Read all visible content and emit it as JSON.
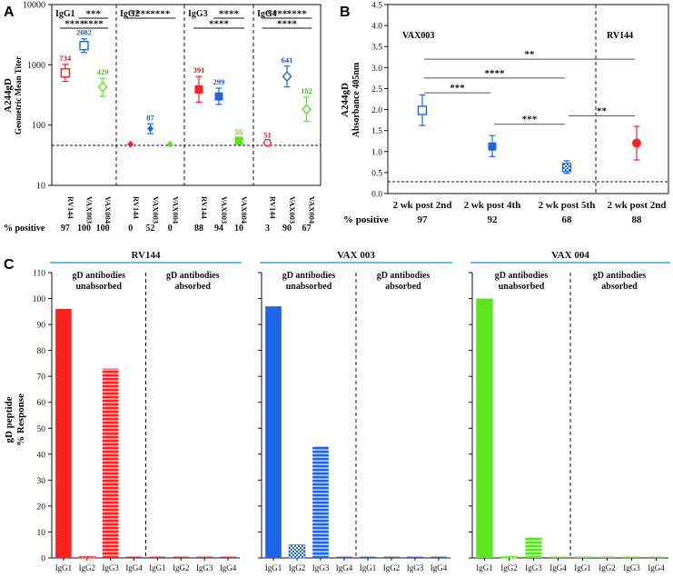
{
  "panel_letters": [
    "A",
    "B",
    "C"
  ],
  "colors": {
    "rv144": "#ff2020",
    "vax003": "#1f66e6",
    "vax004": "#5ae61f",
    "rv144_label": "#e01a1a",
    "vax003_label": "#1a5ad6",
    "vax004_label": "#44c81a",
    "header_line": "#3aa0d8",
    "black": "#111111"
  },
  "chart_data": [
    {
      "id": "A",
      "type": "scatter",
      "title": "",
      "ylabel_line1": "A244gD",
      "ylabel_line2": "Geometric Mean Titer",
      "yscale": "log",
      "ylim": [
        10,
        10000
      ],
      "yticks": [
        "10",
        "100",
        "1000",
        "10000"
      ],
      "cutoff": 45,
      "xlabel_row": "% positive",
      "groups": [
        {
          "name": "IgG1",
          "points": [
            {
              "label": "RV144",
              "value": 734,
              "lo": 530,
              "hi": 1020,
              "marker": "open-square",
              "color": "rv144",
              "pct": "97"
            },
            {
              "label": "VAX003",
              "value": 2082,
              "lo": 1600,
              "hi": 2700,
              "marker": "open-square",
              "color": "vax003",
              "pct": "100"
            },
            {
              "label": "VAX004",
              "value": 429,
              "lo": 300,
              "hi": 600,
              "marker": "open-diamond",
              "color": "vax004",
              "pct": "100"
            }
          ],
          "value_labels": [
            "734",
            "2082",
            "429"
          ],
          "significance": [
            {
              "from": 1,
              "to": 2,
              "stars": "***",
              "level": 0
            },
            {
              "from": 0,
              "to": 1,
              "stars": "****",
              "level": 1
            },
            {
              "from": 1,
              "to": 2,
              "stars": "****",
              "level": 1
            }
          ]
        },
        {
          "name": "IgG2",
          "points": [
            {
              "label": "RV144",
              "value": 48,
              "lo": 48,
              "hi": 48,
              "marker": "diamond",
              "color": "rv144",
              "pct": "0"
            },
            {
              "label": "VAX003",
              "value": 87,
              "lo": 72,
              "hi": 105,
              "marker": "diamond",
              "color": "vax003",
              "pct": "52"
            },
            {
              "label": "VAX004",
              "value": 48,
              "lo": 48,
              "hi": 48,
              "marker": "diamond",
              "color": "vax004",
              "pct": "0"
            }
          ],
          "value_labels": [
            "",
            "87",
            ""
          ],
          "significance": [
            {
              "from": 0,
              "to": 1,
              "stars": "****",
              "level": 0
            },
            {
              "from": 1,
              "to": 2,
              "stars": "****",
              "level": 0
            }
          ]
        },
        {
          "name": "IgG3",
          "points": [
            {
              "label": "RV144",
              "value": 391,
              "lo": 240,
              "hi": 640,
              "marker": "square",
              "color": "rv144",
              "pct": "88"
            },
            {
              "label": "VAX003",
              "value": 299,
              "lo": 220,
              "hi": 410,
              "marker": "square",
              "color": "vax003",
              "pct": "94"
            },
            {
              "label": "VAX004",
              "value": 55,
              "lo": 50,
              "hi": 61,
              "marker": "square",
              "color": "vax004",
              "pct": "10"
            }
          ],
          "value_labels": [
            "391",
            "299",
            "55"
          ],
          "significance": [
            {
              "from": 1,
              "to": 2,
              "stars": "****",
              "level": 0
            },
            {
              "from": 0,
              "to": 2,
              "stars": "****",
              "level": 1
            }
          ]
        },
        {
          "name": "IgG4",
          "points": [
            {
              "label": "RV144",
              "value": 51,
              "lo": 48,
              "hi": 54,
              "marker": "open-hex",
              "color": "rv144",
              "pct": "3"
            },
            {
              "label": "VAX003",
              "value": 641,
              "lo": 430,
              "hi": 950,
              "marker": "open-diamond",
              "color": "vax003",
              "pct": "90"
            },
            {
              "label": "VAX004",
              "value": 182,
              "lo": 115,
              "hi": 290,
              "marker": "open-diamond",
              "color": "vax004",
              "pct": "67"
            }
          ],
          "value_labels": [
            "51",
            "641",
            "182"
          ],
          "significance": [
            {
              "from": 0,
              "to": 1,
              "stars": "****",
              "level": 0
            },
            {
              "from": 1,
              "to": 2,
              "stars": "****",
              "level": 0
            },
            {
              "from": 0,
              "to": 2,
              "stars": "****",
              "level": 1
            }
          ]
        }
      ]
    },
    {
      "id": "B",
      "type": "scatter",
      "title": "",
      "ylabel_line1": "A244gD",
      "ylabel_line2": "Absorbance 405nm",
      "ylim": [
        0,
        4.5
      ],
      "yticks": [
        "0.0",
        "0.5",
        "1.0",
        "1.5",
        "2.0",
        "2.5",
        "3.0",
        "3.5",
        "4.0",
        "4.5"
      ],
      "cutoff": 0.25,
      "section_labels": [
        "VAX003",
        "RV144"
      ],
      "xlabel_row": "% positive",
      "points": [
        {
          "label": "2 wk post 2nd",
          "value": 1.98,
          "lo": 1.62,
          "hi": 2.35,
          "marker": "open-square",
          "color": "vax003",
          "pct": "97"
        },
        {
          "label": "2 wk post 4th",
          "value": 1.12,
          "lo": 0.88,
          "hi": 1.38,
          "marker": "square",
          "color": "vax003",
          "pct": "92"
        },
        {
          "label": "2 wk post 5th",
          "value": 0.62,
          "lo": 0.48,
          "hi": 0.78,
          "marker": "checker-square",
          "color": "vax003",
          "pct": "68"
        },
        {
          "label": "2 wk post 2nd",
          "value": 1.2,
          "lo": 0.8,
          "hi": 1.6,
          "marker": "circle",
          "color": "rv144",
          "pct": "88"
        }
      ],
      "significance": [
        {
          "from": 0,
          "to": 1,
          "stars": "***",
          "y": 2.4
        },
        {
          "from": 1,
          "to": 2,
          "stars": "***",
          "y": 1.65
        },
        {
          "from": 2,
          "to": 3,
          "stars": "**",
          "y": 1.85
        },
        {
          "from": 0,
          "to": 2,
          "stars": "****",
          "y": 2.75
        },
        {
          "from": 0,
          "to": 3,
          "stars": "**",
          "y": 3.2
        }
      ]
    },
    {
      "id": "C",
      "type": "bar",
      "ylabel_line1": "gD peptide",
      "ylabel_line2": "% Response",
      "ylim": [
        0,
        110
      ],
      "yticks": [
        "0",
        "10",
        "20",
        "30",
        "40",
        "50",
        "60",
        "70",
        "80",
        "90",
        "100",
        "110"
      ],
      "sub_labels": {
        "unabsorbed_1": "gD antibodies",
        "unabsorbed_2": "unabsorbed",
        "absorbed_1": "gD antibodies",
        "absorbed_2": "absorbed"
      },
      "categories": [
        "IgG1",
        "IgG2",
        "IgG3",
        "IgG4",
        "IgG1",
        "IgG2",
        "IgG3",
        "IgG4"
      ],
      "patterns": [
        "solid",
        "checker",
        "hstripe",
        "solid",
        "solid",
        "solid",
        "solid",
        "solid"
      ],
      "groups": [
        {
          "name": "RV144",
          "color": "rv144",
          "values": [
            96,
            0.5,
            73,
            0.5,
            0.5,
            0.5,
            0.5,
            0.5
          ]
        },
        {
          "name": "VAX 003",
          "color": "vax003",
          "values": [
            97,
            5,
            43,
            0.5,
            0.5,
            0.5,
            0.5,
            0.5
          ]
        },
        {
          "name": "VAX 004",
          "color": "vax004",
          "values": [
            100,
            0.5,
            8,
            0.5,
            0.5,
            0.5,
            0.5,
            0.5
          ]
        }
      ]
    }
  ]
}
